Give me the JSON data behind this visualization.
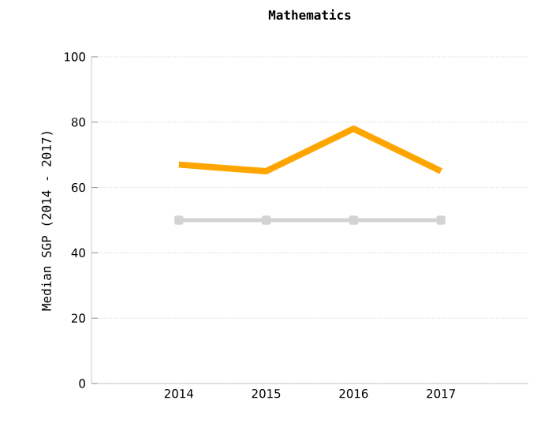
{
  "chart_data": {
    "type": "line",
    "title": "Mathematics",
    "ylabel": "Median SGP (2014 - 2017)",
    "categories": [
      "2014",
      "2015",
      "2016",
      "2017"
    ],
    "series": [
      {
        "color": "#ffa500",
        "values": [
          67,
          65,
          78,
          65
        ],
        "marker": "none"
      },
      {
        "color": "#d3d3d3",
        "values": [
          50,
          50,
          50,
          50
        ],
        "marker": "square"
      }
    ],
    "ylim": [
      0,
      100
    ],
    "yticks": [
      0,
      20,
      40,
      60,
      80,
      100
    ],
    "grid": "y"
  }
}
